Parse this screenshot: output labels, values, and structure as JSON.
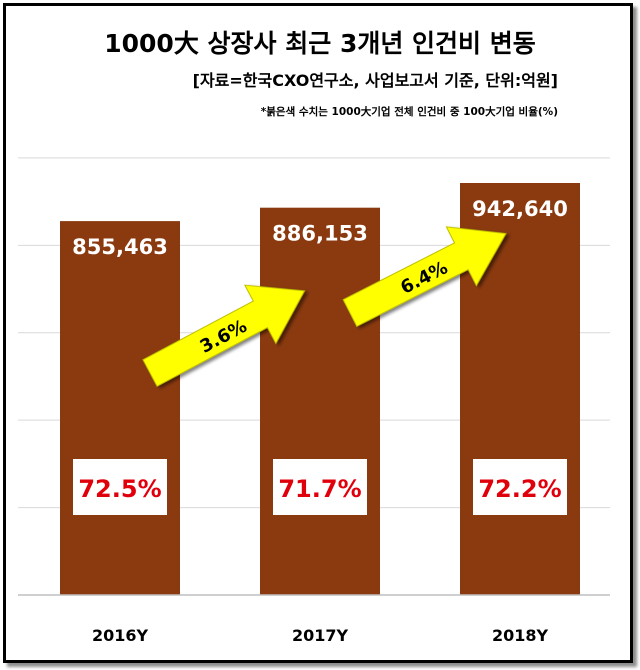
{
  "chart_data": {
    "type": "bar",
    "title": "1000大 상장사 최근 3개년 인건비 변동",
    "subtitle": "[자료=한국CXO연구소, 사업보고서 기준, 단위:억원]",
    "note": "*붉은색 수치는 1000大기업 전체 인건비 중 100大기업 비율(%)",
    "categories": [
      "2016Y",
      "2017Y",
      "2018Y"
    ],
    "values": [
      855463,
      886153,
      942640
    ],
    "value_labels": [
      "855,463",
      "886,153",
      "942,640"
    ],
    "ratio_labels": [
      "72.5%",
      "71.7%",
      "72.2%"
    ],
    "growth_labels": [
      "3.6%",
      "6.4%"
    ],
    "ylim": [
      0,
      1400000
    ],
    "grid": true,
    "colors": {
      "bar": "#8B3A0F",
      "ratio_text": "#E0000B",
      "ratio_box": "#FFFFFF",
      "arrow": "#FFFF00",
      "value_text": "#FFFFFF"
    }
  }
}
